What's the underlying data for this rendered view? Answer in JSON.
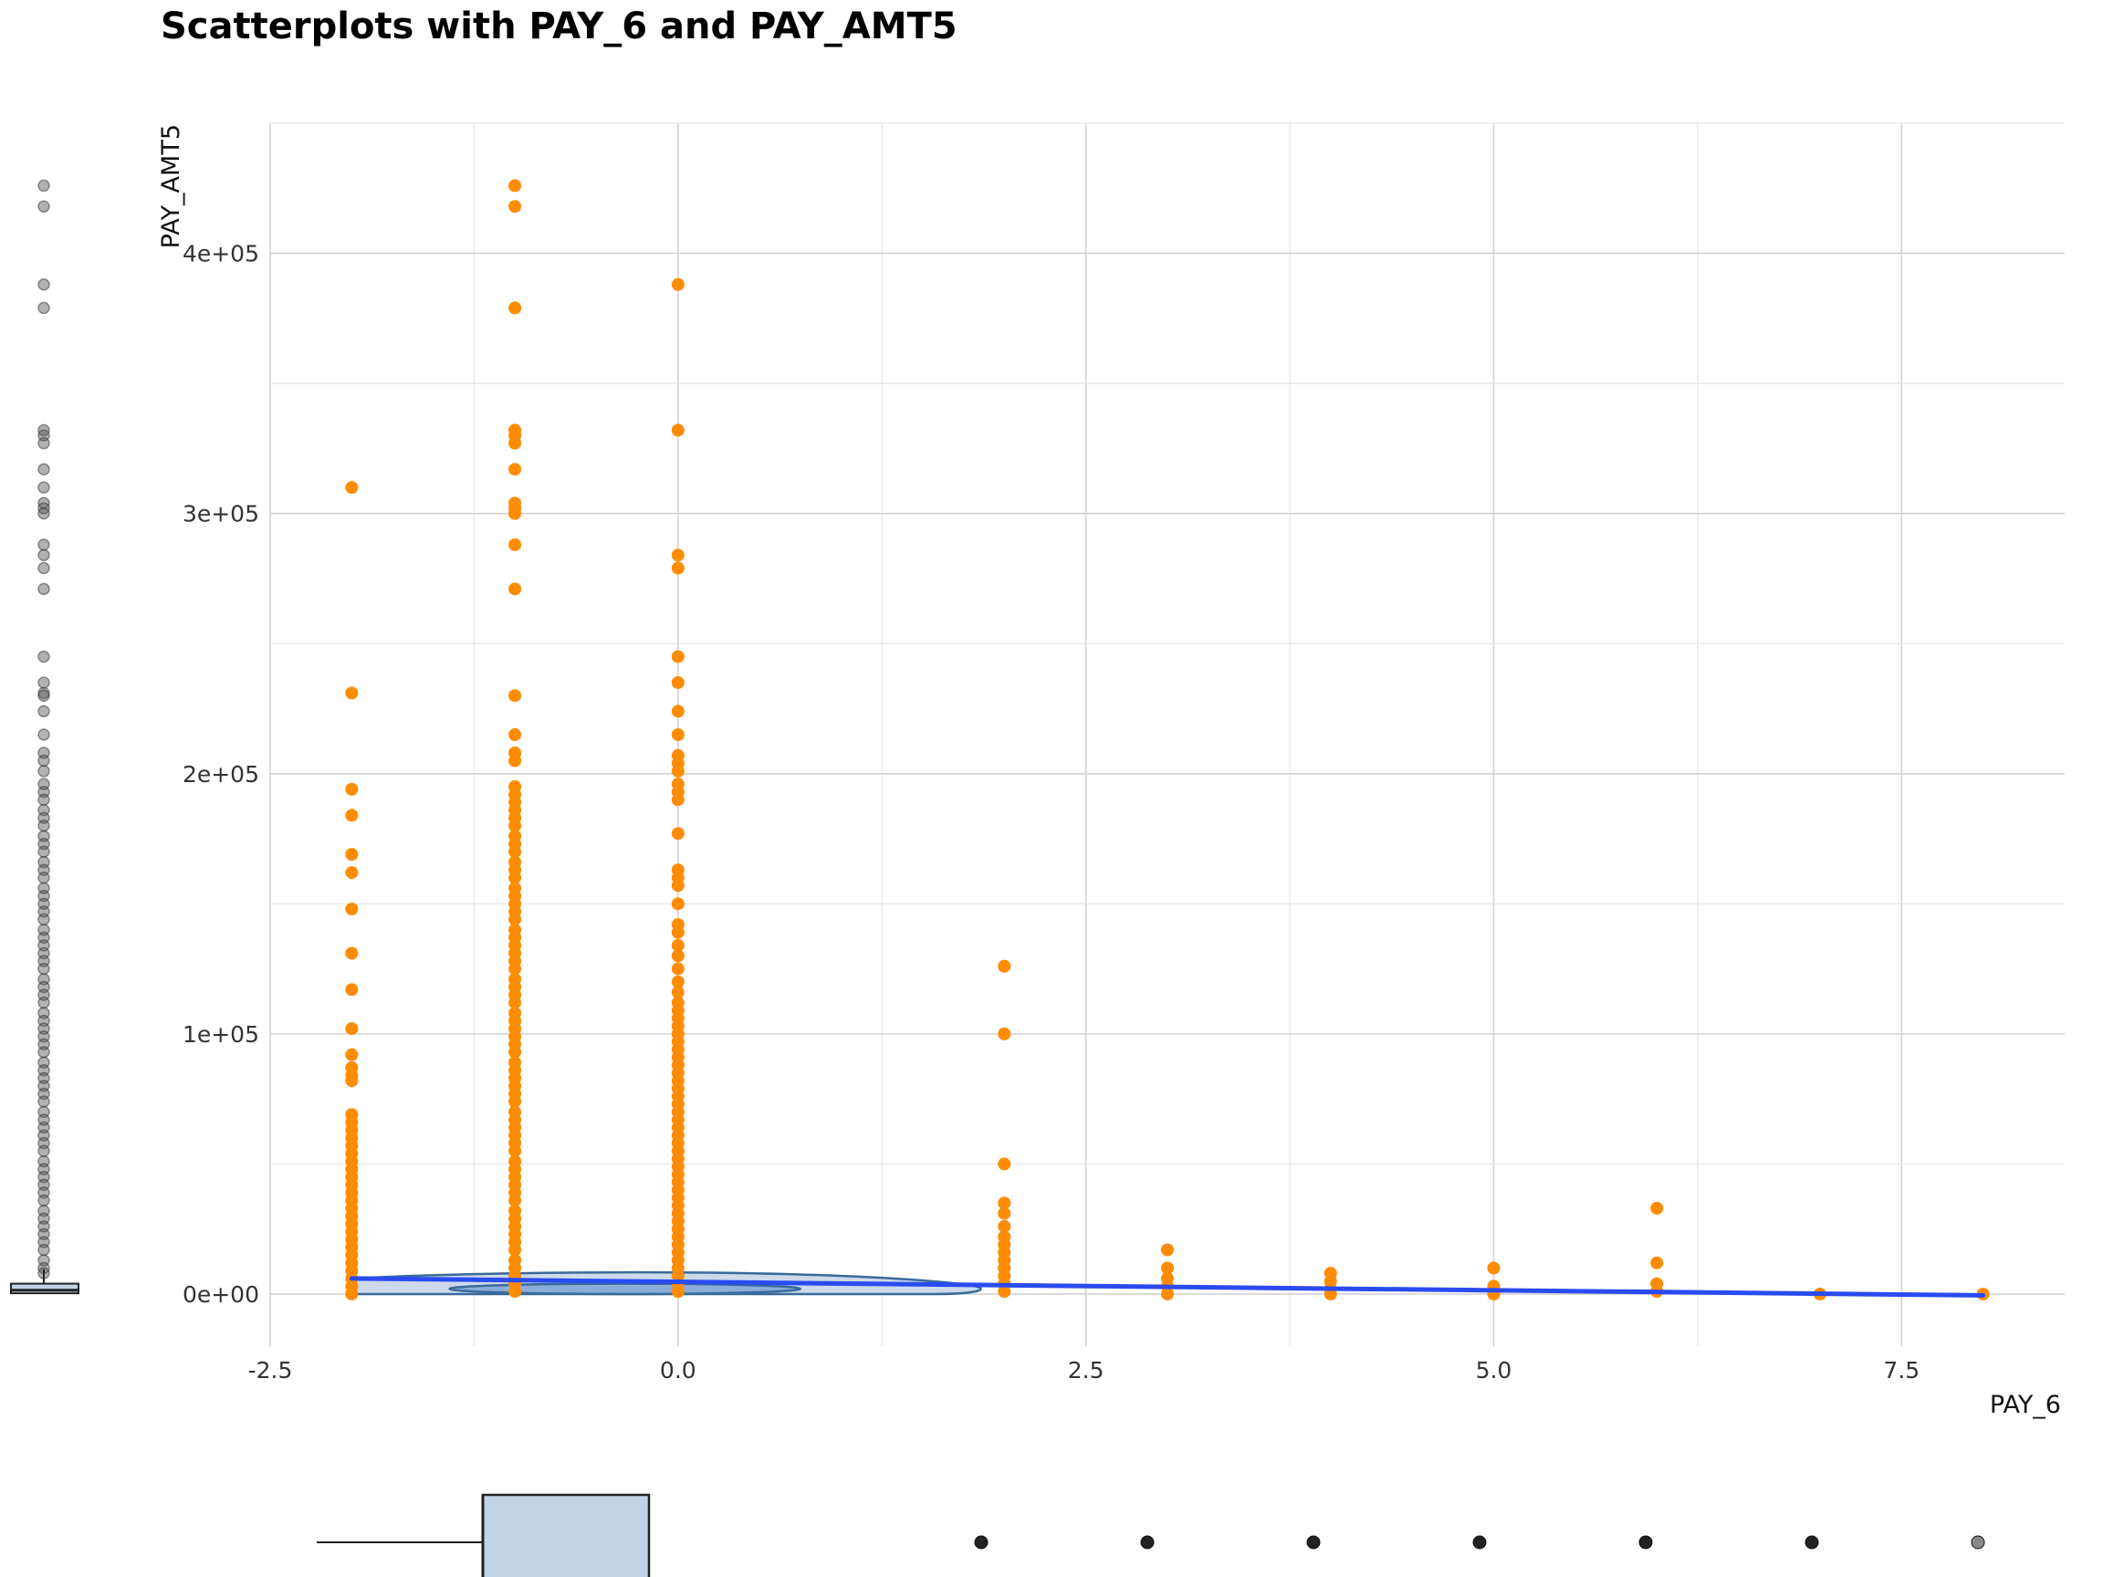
{
  "chart_data": {
    "type": "scatter",
    "title": "Scatterplots with PAY_6 and PAY_AMT5",
    "xlabel": "PAY_6",
    "ylabel": "PAY_AMT5",
    "xlim": [
      -2.5,
      8.5
    ],
    "ylim": [
      -20000,
      450000
    ],
    "x_ticks": [
      -2.5,
      0.0,
      2.5,
      5.0,
      7.5
    ],
    "x_tick_labels": [
      "-2.5",
      "0.0",
      "2.5",
      "5.0",
      "7.5"
    ],
    "y_ticks": [
      0,
      100000,
      200000,
      300000,
      400000
    ],
    "y_tick_labels": [
      "0e+00",
      "1e+05",
      "2e+05",
      "3e+05",
      "4e+05"
    ],
    "grid": true,
    "point_color": "#ff8c00",
    "trend_color": "#2a4bf0",
    "contour_fill": "#c3d3e6",
    "contour_stroke": "#3a6a9a",
    "points": [
      {
        "x": -2,
        "y": [
          310000,
          231000,
          194000,
          184000,
          169000,
          162000,
          148000,
          131000,
          117000,
          102000,
          92000,
          87000,
          84000,
          82000,
          69000,
          66000,
          63000,
          60000,
          57000,
          54000,
          51000,
          48000,
          45000,
          42000,
          39000,
          36000,
          33000,
          30000,
          27000,
          24000,
          21000,
          18000,
          15000,
          12000,
          9000,
          6000,
          3000,
          0
        ]
      },
      {
        "x": -1,
        "y": [
          426000,
          418000,
          379000,
          332000,
          330000,
          327000,
          317000,
          304000,
          302000,
          300000,
          288000,
          271000,
          230000,
          215000,
          208000,
          205000,
          195000,
          192000,
          189000,
          186000,
          183000,
          180000,
          176000,
          173000,
          170000,
          166000,
          163000,
          160000,
          156000,
          153000,
          150000,
          147000,
          144000,
          140000,
          137000,
          134000,
          131000,
          128000,
          125000,
          121000,
          118000,
          115000,
          112000,
          108000,
          105000,
          102000,
          99000,
          96000,
          93000,
          89000,
          86000,
          83000,
          80000,
          77000,
          74000,
          70000,
          67000,
          64000,
          61000,
          58000,
          55000,
          51000,
          48000,
          45000,
          42000,
          39000,
          36000,
          32000,
          29000,
          26000,
          23000,
          20000,
          17000,
          13000,
          10000,
          7000,
          4000,
          1000
        ]
      },
      {
        "x": 0,
        "y": [
          388000,
          332000,
          284000,
          279000,
          245000,
          235000,
          224000,
          215000,
          207000,
          204000,
          201000,
          196000,
          193000,
          190000,
          177000,
          163000,
          160000,
          157000,
          150000,
          142000,
          139000,
          134000,
          130000,
          125000,
          120000,
          116000,
          112000,
          109000,
          106000,
          103000,
          100000,
          97000,
          94000,
          91000,
          88000,
          85000,
          82000,
          79000,
          76000,
          73000,
          70000,
          67000,
          64000,
          61000,
          58000,
          55000,
          52000,
          49000,
          46000,
          43000,
          40000,
          37000,
          34000,
          31000,
          28000,
          25000,
          22000,
          19000,
          16000,
          13000,
          10000,
          7000,
          4000,
          1000
        ]
      },
      {
        "x": 2,
        "y": [
          126000,
          100000,
          50000,
          35000,
          31000,
          26000,
          22000,
          19000,
          16000,
          13000,
          10000,
          7000,
          4000,
          1000
        ]
      },
      {
        "x": 3,
        "y": [
          17000,
          10000,
          6000,
          3000,
          0
        ]
      },
      {
        "x": 4,
        "y": [
          8000,
          5000,
          2000,
          0
        ]
      },
      {
        "x": 5,
        "y": [
          10000,
          3000,
          0
        ]
      },
      {
        "x": 6,
        "y": [
          33000,
          12000,
          4000,
          1000
        ]
      },
      {
        "x": 7,
        "y": [
          0
        ]
      },
      {
        "x": 8,
        "y": [
          0
        ]
      }
    ],
    "trend_line": [
      [
        -2,
        6000
      ],
      [
        8,
        -500
      ]
    ],
    "y_marginal_box": {
      "outliers": [
        426000,
        418000,
        388000,
        379000,
        332000,
        330000,
        327000,
        317000,
        310000,
        304000,
        302000,
        300000,
        288000,
        284000,
        279000,
        271000,
        245000,
        235000,
        231000,
        230000,
        224000,
        215000,
        208000,
        205000,
        201000,
        196000,
        193000,
        190000,
        186000,
        183000,
        180000,
        176000,
        173000,
        170000,
        166000,
        163000,
        160000,
        156000,
        153000,
        150000,
        147000,
        144000,
        140000,
        137000,
        134000,
        131000,
        128000,
        125000,
        121000,
        118000,
        115000,
        112000,
        108000,
        105000,
        102000,
        99000,
        96000,
        93000,
        89000,
        86000,
        83000,
        80000,
        77000,
        74000,
        70000,
        67000,
        64000,
        61000,
        58000,
        55000,
        51000,
        48000,
        45000,
        42000,
        39000,
        36000,
        32000,
        29000,
        26000,
        23000,
        20000,
        17000,
        13000,
        10000,
        8000
      ],
      "q1": 300,
      "median": 1500,
      "q3": 4000,
      "whisker_low": 0,
      "whisker_high": 9500
    },
    "x_marginal_box": {
      "whisker_low": -2,
      "q1": -1,
      "median": -1,
      "q3": 0,
      "whisker_high": 0,
      "outliers": [
        2,
        3,
        4,
        5,
        6,
        7,
        8
      ]
    }
  }
}
